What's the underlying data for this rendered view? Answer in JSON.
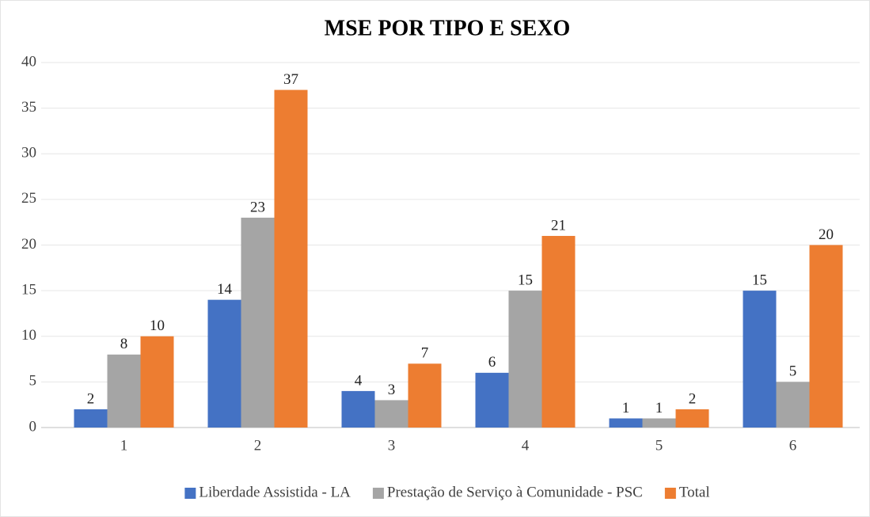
{
  "chart_data": {
    "type": "bar",
    "title": "MSE POR TIPO E SEXO",
    "categories": [
      "1",
      "2",
      "3",
      "4",
      "5",
      "6"
    ],
    "series": [
      {
        "name": "Liberdade Assistida - LA",
        "color": "#4472c4",
        "values": [
          2,
          14,
          4,
          6,
          1,
          15
        ]
      },
      {
        "name": "Prestação de Serviço à Comunidade - PSC",
        "color": "#a5a5a5",
        "values": [
          8,
          23,
          3,
          15,
          1,
          5
        ]
      },
      {
        "name": "Total",
        "color": "#ed7d31",
        "values": [
          10,
          37,
          7,
          21,
          2,
          20
        ]
      }
    ],
    "ylim": [
      0,
      40
    ],
    "yticks": [
      0,
      5,
      10,
      15,
      20,
      25,
      30,
      35,
      40
    ],
    "grid": true,
    "legend": "bottom"
  }
}
